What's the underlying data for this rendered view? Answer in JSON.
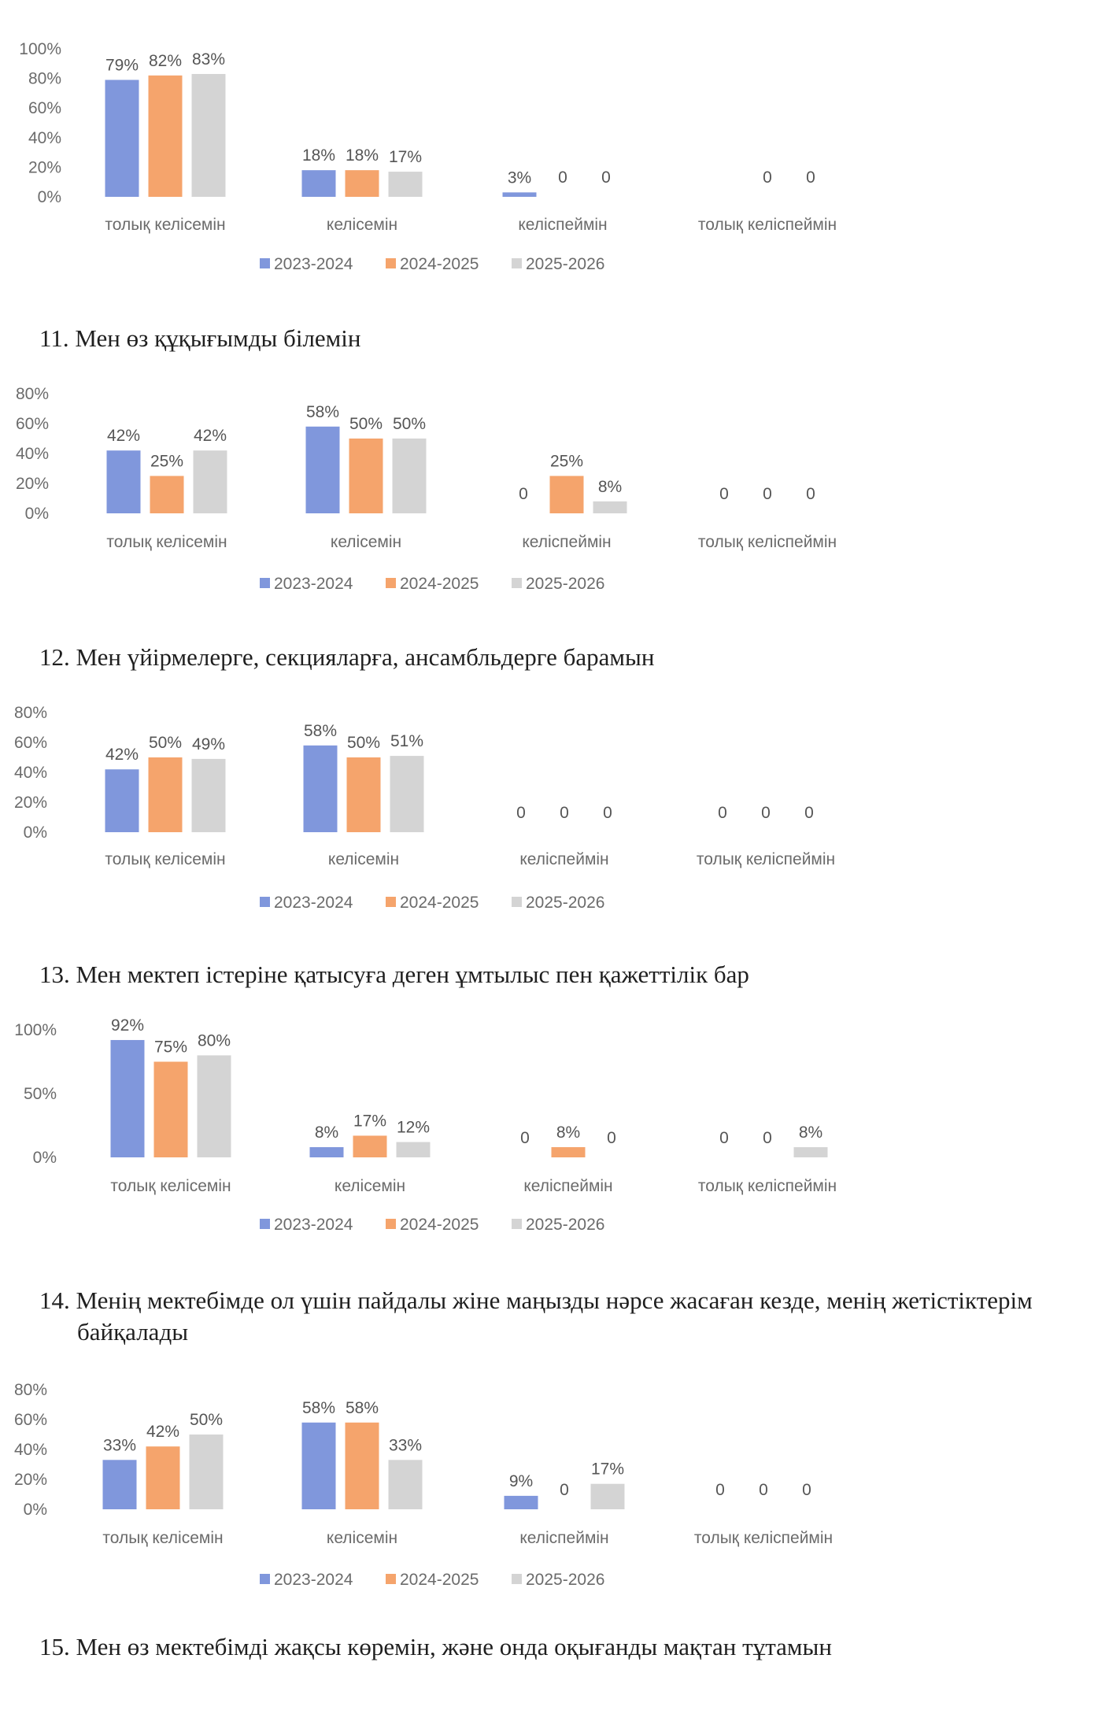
{
  "series_colors": {
    "2023-2024": "#8097dc",
    "2024-2025": "#f5a46c",
    "2025-2026": "#d4d4d4"
  },
  "questions": {
    "q11": "11. Мен өз құқығымды білемін",
    "q12": "12. Мен үйірмелерге, секцияларға, ансамбльдерге барамын",
    "q13": "13. Мен мектеп істеріне қатысуға деген ұмтылыс пен қажеттілік бар",
    "q14_line1": "14. Менің мектебімде ол үшін пайдалы жіне маңызды нәрсе жасаған кезде, менің жетістіктерім",
    "q14_line2": "байқалады",
    "q15": "15. Мен өз мектебімді жақсы көремін, және онда оқығанды мақтан тұтамын"
  },
  "chart_data": [
    {
      "type": "bar",
      "categories": [
        "толық келісемін",
        "келісемін",
        "келіспеймін",
        "толық келіспеймін"
      ],
      "yticks": [
        "100%",
        "80%",
        "60%",
        "40%",
        "20%",
        "0%"
      ],
      "ylim": [
        0,
        100
      ],
      "series": [
        {
          "name": "2023-2024",
          "values": [
            79,
            18,
            3,
            null
          ],
          "labels": [
            "79%",
            "18%",
            "3%",
            ""
          ]
        },
        {
          "name": "2024-2025",
          "values": [
            82,
            18,
            0,
            0
          ],
          "labels": [
            "82%",
            "18%",
            "0",
            "0"
          ]
        },
        {
          "name": "2025-2026",
          "values": [
            83,
            17,
            0,
            0
          ],
          "labels": [
            "83%",
            "17%",
            "0",
            "0"
          ]
        }
      ],
      "legend": "bottom"
    },
    {
      "type": "bar",
      "categories": [
        "толық келісемін",
        "келісемін",
        "келіспеймін",
        "толық келіспеймін"
      ],
      "yticks": [
        "80%",
        "60%",
        "40%",
        "20%",
        "0%"
      ],
      "ylim": [
        0,
        80
      ],
      "series": [
        {
          "name": "2023-2024",
          "values": [
            42,
            58,
            0,
            0
          ],
          "labels": [
            "42%",
            "58%",
            "0",
            "0"
          ]
        },
        {
          "name": "2024-2025",
          "values": [
            25,
            50,
            25,
            0
          ],
          "labels": [
            "25%",
            "50%",
            "25%",
            "0"
          ]
        },
        {
          "name": "2025-2026",
          "values": [
            42,
            50,
            8,
            0
          ],
          "labels": [
            "42%",
            "50%",
            "8%",
            "0"
          ]
        }
      ],
      "legend": "bottom"
    },
    {
      "type": "bar",
      "categories": [
        "толық келісемін",
        "келісемін",
        "келіспеймін",
        "толық келіспеймін"
      ],
      "yticks": [
        "80%",
        "60%",
        "40%",
        "20%",
        "0%"
      ],
      "ylim": [
        0,
        80
      ],
      "series": [
        {
          "name": "2023-2024",
          "values": [
            42,
            58,
            0,
            0
          ],
          "labels": [
            "42%",
            "58%",
            "0",
            "0"
          ]
        },
        {
          "name": "2024-2025",
          "values": [
            50,
            50,
            0,
            0
          ],
          "labels": [
            "50%",
            "50%",
            "0",
            "0"
          ]
        },
        {
          "name": "2025-2026",
          "values": [
            49,
            51,
            0,
            0
          ],
          "labels": [
            "49%",
            "51%",
            "0",
            "0"
          ]
        }
      ],
      "legend": "bottom"
    },
    {
      "type": "bar",
      "categories": [
        "толық келісемін",
        "келісемін",
        "келіспеймін",
        "толық келіспеймін"
      ],
      "yticks": [
        "100%",
        "50%",
        "0%"
      ],
      "ylim": [
        0,
        100
      ],
      "series": [
        {
          "name": "2023-2024",
          "values": [
            92,
            8,
            0,
            0
          ],
          "labels": [
            "92%",
            "8%",
            "0",
            "0"
          ]
        },
        {
          "name": "2024-2025",
          "values": [
            75,
            17,
            8,
            0
          ],
          "labels": [
            "75%",
            "17%",
            "8%",
            "0"
          ]
        },
        {
          "name": "2025-2026",
          "values": [
            80,
            12,
            0,
            8
          ],
          "labels": [
            "80%",
            "12%",
            "0",
            "8%"
          ]
        }
      ],
      "legend": "bottom"
    },
    {
      "type": "bar",
      "categories": [
        "толық келісемін",
        "келісемін",
        "келіспеймін",
        "толық келіспеймін"
      ],
      "yticks": [
        "80%",
        "60%",
        "40%",
        "20%",
        "0%"
      ],
      "ylim": [
        0,
        80
      ],
      "series": [
        {
          "name": "2023-2024",
          "values": [
            33,
            58,
            9,
            0
          ],
          "labels": [
            "33%",
            "58%",
            "9%",
            "0"
          ]
        },
        {
          "name": "2024-2025",
          "values": [
            42,
            58,
            0,
            0
          ],
          "labels": [
            "42%",
            "58%",
            "0",
            "0"
          ]
        },
        {
          "name": "2025-2026",
          "values": [
            50,
            33,
            17,
            0
          ],
          "labels": [
            "50%",
            "33%",
            "17%",
            "0"
          ]
        }
      ],
      "legend": "bottom"
    }
  ]
}
